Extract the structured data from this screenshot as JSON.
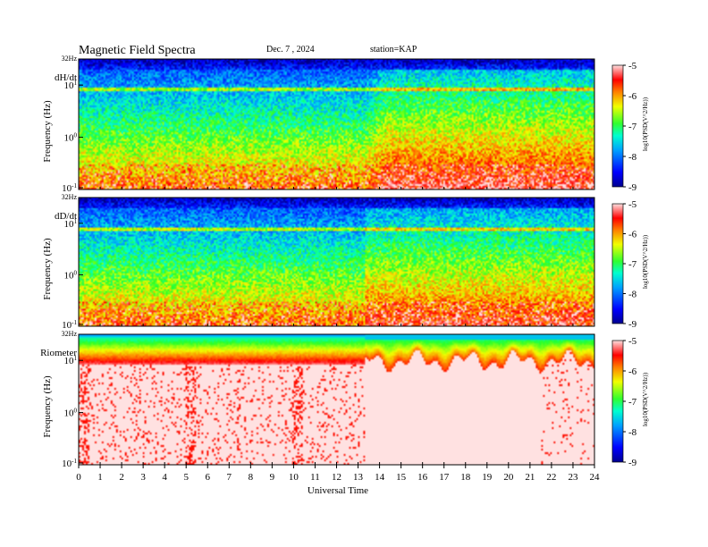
{
  "header": {
    "title": "Magnetic  Field  Spectra",
    "date": "Dec. 7  , 2024",
    "station": "station=KAP"
  },
  "chart_data": {
    "type": "heatmap",
    "xlabel": "Universal Time",
    "x_ticks": [
      "0",
      "1",
      "2",
      "3",
      "4",
      "5",
      "6",
      "7",
      "8",
      "9",
      "10",
      "11",
      "12",
      "13",
      "14",
      "15",
      "16",
      "17",
      "18",
      "19",
      "20",
      "21",
      "22",
      "23",
      "24"
    ],
    "xlim": [
      0,
      24
    ],
    "top_freq_label": "32Hz",
    "y_ticks": [
      "10^-1",
      "10^0",
      "10^1"
    ],
    "ylabel": "Frequency  (Hz)",
    "colorbar": {
      "ticks": [
        "-5",
        "-6",
        "-7",
        "-8",
        "-9"
      ],
      "range": [
        -9,
        -5
      ],
      "label": "log10(PSD(V^2/Hz))"
    },
    "panels": [
      {
        "name": "dH/dt"
      },
      {
        "name": "dD/dt"
      },
      {
        "name": "Riometer"
      }
    ]
  }
}
